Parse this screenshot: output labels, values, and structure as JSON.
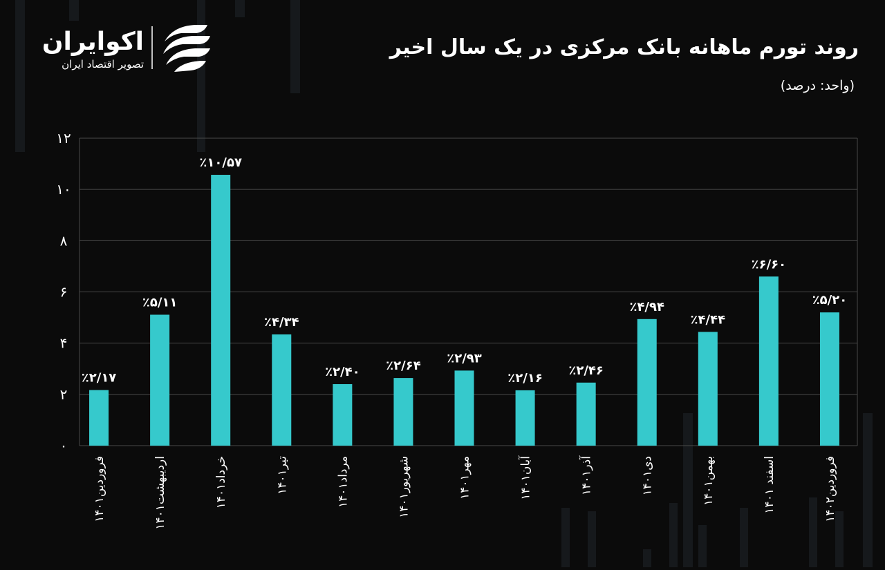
{
  "brand": {
    "name": "اکوایران",
    "tagline": "تصویر اقتصاد ایران"
  },
  "chart_data": {
    "type": "bar",
    "title": "روند تورم ماهانه بانک مرکزی در یک سال اخیر",
    "subtitle": "(واحد: درصد)",
    "categories": [
      "فروردین۱۴۰۱",
      "اردیبهشت۱۴۰۱",
      "خرداد۱۴۰۱",
      "تیر۱۴۰۱",
      "مرداد۱۴۰۱",
      "شهریور۱۴۰۱",
      "مهر۱۴۰۱",
      "آبان۱۴۰۱",
      "آذر۱۴۰۱",
      "دی۱۴۰۱",
      "بهمن۱۴۰۱",
      "اسفند ۱۴۰۱",
      "فروردین۱۴۰۲"
    ],
    "values": [
      2.17,
      5.11,
      10.57,
      4.34,
      2.4,
      2.64,
      2.93,
      2.16,
      2.46,
      4.94,
      4.44,
      6.6,
      5.2
    ],
    "value_labels": [
      "٪۲/۱۷",
      "٪۵/۱۱",
      "٪۱۰/۵۷",
      "٪۴/۳۴",
      "٪۲/۴۰",
      "٪۲/۶۴",
      "٪۲/۹۳",
      "٪۲/۱۶",
      "٪۲/۴۶",
      "٪۴/۹۴",
      "٪۴/۴۴",
      "٪۶/۶۰",
      "٪۵/۲۰"
    ],
    "color": "#36c9cc",
    "ylim": [
      0,
      12
    ],
    "yticks": [
      {
        "value": 0,
        "label": "۰"
      },
      {
        "value": 2,
        "label": "۲"
      },
      {
        "value": 4,
        "label": "۴"
      },
      {
        "value": 6,
        "label": "۶"
      },
      {
        "value": 8,
        "label": "۸"
      },
      {
        "value": 10,
        "label": "۱۰"
      },
      {
        "value": 12,
        "label": "۱۲"
      }
    ],
    "grid": true
  }
}
